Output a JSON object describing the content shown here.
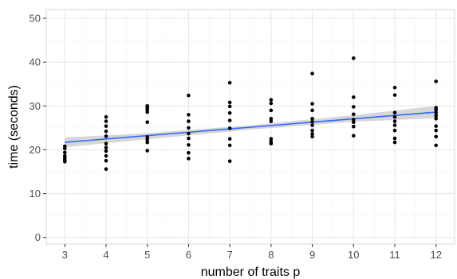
{
  "chart_data": {
    "type": "scatter",
    "title": "",
    "xlabel": "number of traits p",
    "ylabel": "time (seconds)",
    "xlim": [
      2.55,
      12.45
    ],
    "ylim": [
      -1.5,
      52
    ],
    "x_ticks": [
      3,
      4,
      5,
      6,
      7,
      8,
      9,
      10,
      11,
      12
    ],
    "x_tick_labels": [
      "3",
      "4",
      "5",
      "6",
      "7",
      "8",
      "9",
      "10",
      "11",
      "12"
    ],
    "y_ticks": [
      0,
      10,
      20,
      30,
      40,
      50
    ],
    "y_tick_labels": [
      "0",
      "10",
      "20",
      "30",
      "40",
      "50"
    ],
    "grid": true,
    "legend": "none",
    "colors": {
      "panel_background": "#ffffff",
      "grid_major": "#e6e6e6",
      "grid_minor": "#f2f2f2",
      "points": "#000000",
      "fit_line": "#3366ff",
      "confidence_band": "#c9c9c9"
    },
    "points": [
      {
        "x": 3,
        "y": 17.3
      },
      {
        "x": 3,
        "y": 17.7
      },
      {
        "x": 3,
        "y": 18.1
      },
      {
        "x": 3,
        "y": 18.6
      },
      {
        "x": 3,
        "y": 19.4
      },
      {
        "x": 3,
        "y": 20.3
      },
      {
        "x": 3,
        "y": 20.8
      },
      {
        "x": 4,
        "y": 15.6
      },
      {
        "x": 4,
        "y": 17.5
      },
      {
        "x": 4,
        "y": 18.6
      },
      {
        "x": 4,
        "y": 19.7
      },
      {
        "x": 4,
        "y": 20.5
      },
      {
        "x": 4,
        "y": 21.4
      },
      {
        "x": 4,
        "y": 23.1
      },
      {
        "x": 4,
        "y": 24.2
      },
      {
        "x": 4,
        "y": 25.4
      },
      {
        "x": 4,
        "y": 26.5
      },
      {
        "x": 4,
        "y": 27.5
      },
      {
        "x": 5,
        "y": 19.8
      },
      {
        "x": 5,
        "y": 21.7
      },
      {
        "x": 5,
        "y": 22.3
      },
      {
        "x": 5,
        "y": 22.9
      },
      {
        "x": 5,
        "y": 26.3
      },
      {
        "x": 5,
        "y": 28.6
      },
      {
        "x": 5,
        "y": 29.1
      },
      {
        "x": 5,
        "y": 29.6
      },
      {
        "x": 5,
        "y": 30.0
      },
      {
        "x": 6,
        "y": 18.0
      },
      {
        "x": 6,
        "y": 19.3
      },
      {
        "x": 6,
        "y": 21.1
      },
      {
        "x": 6,
        "y": 22.6
      },
      {
        "x": 6,
        "y": 23.7
      },
      {
        "x": 6,
        "y": 25.0
      },
      {
        "x": 6,
        "y": 26.5
      },
      {
        "x": 6,
        "y": 28.0
      },
      {
        "x": 6,
        "y": 32.4
      },
      {
        "x": 7,
        "y": 17.4
      },
      {
        "x": 7,
        "y": 21.0
      },
      {
        "x": 7,
        "y": 22.5
      },
      {
        "x": 7,
        "y": 24.9
      },
      {
        "x": 7,
        "y": 26.7
      },
      {
        "x": 7,
        "y": 28.4
      },
      {
        "x": 7,
        "y": 29.9
      },
      {
        "x": 7,
        "y": 30.8
      },
      {
        "x": 7,
        "y": 35.3
      },
      {
        "x": 8,
        "y": 21.4
      },
      {
        "x": 8,
        "y": 21.9
      },
      {
        "x": 8,
        "y": 22.5
      },
      {
        "x": 8,
        "y": 26.5
      },
      {
        "x": 8,
        "y": 27.1
      },
      {
        "x": 8,
        "y": 29.0
      },
      {
        "x": 8,
        "y": 30.6
      },
      {
        "x": 8,
        "y": 31.4
      },
      {
        "x": 9,
        "y": 23.0
      },
      {
        "x": 9,
        "y": 23.6
      },
      {
        "x": 9,
        "y": 24.4
      },
      {
        "x": 9,
        "y": 25.6
      },
      {
        "x": 9,
        "y": 26.4
      },
      {
        "x": 9,
        "y": 27.1
      },
      {
        "x": 9,
        "y": 29.0
      },
      {
        "x": 9,
        "y": 30.5
      },
      {
        "x": 9,
        "y": 37.4
      },
      {
        "x": 10,
        "y": 23.2
      },
      {
        "x": 10,
        "y": 25.3
      },
      {
        "x": 10,
        "y": 26.3
      },
      {
        "x": 10,
        "y": 26.9
      },
      {
        "x": 10,
        "y": 28.1
      },
      {
        "x": 10,
        "y": 29.8
      },
      {
        "x": 10,
        "y": 32.0
      },
      {
        "x": 10,
        "y": 40.9
      },
      {
        "x": 11,
        "y": 21.7
      },
      {
        "x": 11,
        "y": 22.6
      },
      {
        "x": 11,
        "y": 24.4
      },
      {
        "x": 11,
        "y": 25.6
      },
      {
        "x": 11,
        "y": 26.5
      },
      {
        "x": 11,
        "y": 27.5
      },
      {
        "x": 11,
        "y": 28.5
      },
      {
        "x": 11,
        "y": 32.5
      },
      {
        "x": 11,
        "y": 34.2
      },
      {
        "x": 12,
        "y": 21.0
      },
      {
        "x": 12,
        "y": 23.0
      },
      {
        "x": 12,
        "y": 24.4
      },
      {
        "x": 12,
        "y": 25.4
      },
      {
        "x": 12,
        "y": 27.1
      },
      {
        "x": 12,
        "y": 27.8
      },
      {
        "x": 12,
        "y": 28.5
      },
      {
        "x": 12,
        "y": 29.1
      },
      {
        "x": 12,
        "y": 29.6
      },
      {
        "x": 12,
        "y": 35.6
      }
    ],
    "fit_line": {
      "method": "linear",
      "x": [
        3,
        12
      ],
      "y": [
        21.7,
        28.6
      ]
    },
    "confidence_band": {
      "x": [
        3,
        5,
        7.5,
        10,
        12
      ],
      "lower": [
        20.6,
        22.4,
        24.6,
        26.4,
        27.2
      ],
      "upper": [
        22.8,
        23.8,
        25.6,
        27.9,
        30.0
      ]
    }
  }
}
